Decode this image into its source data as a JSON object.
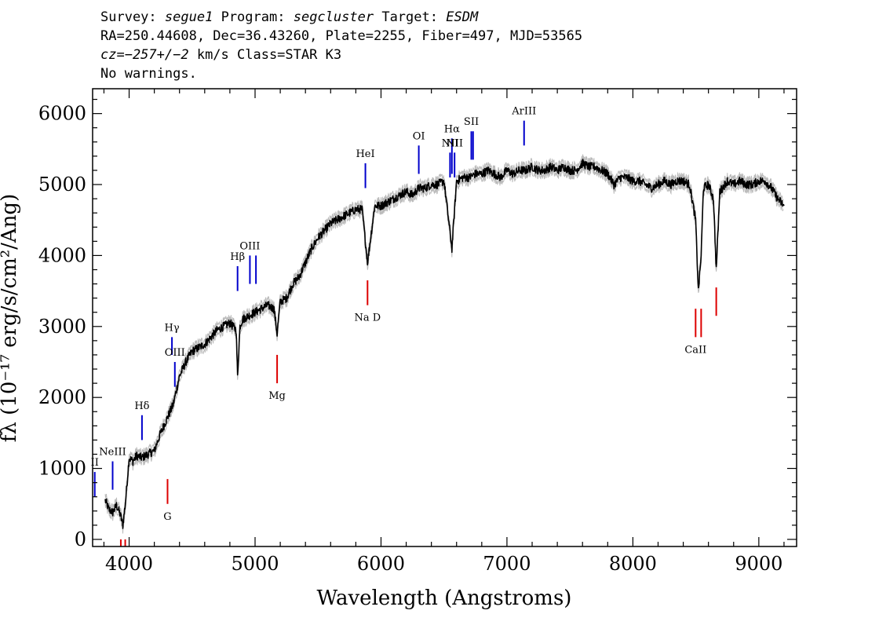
{
  "header": {
    "survey_label": "Survey:",
    "survey": "segue1",
    "program_label": "Program:",
    "program": "segcluster",
    "target_label": "Target:",
    "target": "ESDM",
    "line2": "RA=250.44608, Dec=36.43260, Plate=2255, Fiber=497, MJD=53565",
    "cz": "cz=−257+/−2",
    "cz_rest": " km/s Class=STAR K3",
    "warnings": "No warnings."
  },
  "chart_data": {
    "type": "line",
    "xlabel": "Wavelength (Angstroms)",
    "ylabel": "fλ (10⁻¹⁷ erg/s/cm²/Ang)",
    "xlim": [
      3710,
      9300
    ],
    "ylim": [
      -100,
      6350
    ],
    "xticks": [
      4000,
      5000,
      6000,
      7000,
      8000,
      9000
    ],
    "yticks": [
      0,
      1000,
      2000,
      3000,
      4000,
      5000,
      6000
    ],
    "grid": false,
    "series": [
      {
        "color": "#000000",
        "x": [
          3810,
          3840,
          3870,
          3900,
          3930,
          3950,
          3970,
          4000,
          4030,
          4060,
          4100,
          4150,
          4200,
          4250,
          4300,
          4350,
          4400,
          4450,
          4500,
          4550,
          4600,
          4650,
          4700,
          4750,
          4800,
          4850,
          4861,
          4880,
          4900,
          4950,
          5000,
          5050,
          5100,
          5150,
          5175,
          5200,
          5250,
          5300,
          5350,
          5400,
          5450,
          5500,
          5550,
          5600,
          5650,
          5700,
          5750,
          5800,
          5850,
          5893,
          5950,
          6000,
          6050,
          6100,
          6150,
          6200,
          6250,
          6300,
          6350,
          6400,
          6450,
          6500,
          6563,
          6600,
          6650,
          6700,
          6750,
          6800,
          6850,
          6900,
          6950,
          7000,
          7050,
          7100,
          7150,
          7200,
          7250,
          7300,
          7350,
          7400,
          7450,
          7500,
          7550,
          7600,
          7650,
          7700,
          7750,
          7800,
          7850,
          7900,
          7950,
          8000,
          8050,
          8100,
          8150,
          8200,
          8250,
          8300,
          8350,
          8400,
          8450,
          8498,
          8520,
          8542,
          8560,
          8600,
          8640,
          8662,
          8690,
          8750,
          8800,
          8850,
          8900,
          8950,
          9000,
          9050,
          9100,
          9150,
          9200
        ],
        "y": [
          550,
          420,
          380,
          480,
          350,
          200,
          500,
          1150,
          1100,
          1180,
          1150,
          1200,
          1250,
          1500,
          1700,
          1900,
          2300,
          2500,
          2650,
          2700,
          2750,
          2850,
          2950,
          3000,
          3050,
          2950,
          2300,
          3000,
          3100,
          3150,
          3200,
          3250,
          3300,
          3250,
          2900,
          3350,
          3400,
          3600,
          3700,
          3900,
          4100,
          4250,
          4350,
          4450,
          4500,
          4550,
          4600,
          4650,
          4650,
          3900,
          4700,
          4700,
          4750,
          4800,
          4850,
          4900,
          4850,
          4950,
          4950,
          5000,
          5000,
          5050,
          4100,
          5050,
          5100,
          5100,
          5150,
          5150,
          5200,
          5150,
          5100,
          5200,
          5150,
          5200,
          5200,
          5250,
          5200,
          5200,
          5250,
          5200,
          5250,
          5200,
          5200,
          5300,
          5250,
          5250,
          5200,
          5150,
          5000,
          5100,
          5100,
          5050,
          5050,
          5000,
          4950,
          5000,
          5050,
          5000,
          5050,
          5050,
          5000,
          4500,
          3500,
          4000,
          4950,
          5000,
          4800,
          3800,
          4900,
          5050,
          5000,
          5050,
          5000,
          5000,
          5050,
          5050,
          4950,
          4800,
          4700
        ]
      }
    ],
    "emission_lines": [
      {
        "label": "II",
        "x": 3727,
        "y0": 600,
        "y1": 950
      },
      {
        "label": "NeIII",
        "x": 3869,
        "y0": 700,
        "y1": 1100
      },
      {
        "label": "Hδ",
        "x": 4102,
        "y0": 1400,
        "y1": 1750
      },
      {
        "label": "Hγ",
        "x": 4340,
        "y0": 2600,
        "y1": 2850
      },
      {
        "label": "OIII",
        "x": 4363,
        "y0": 2150,
        "y1": 2500
      },
      {
        "label": "Hβ",
        "x": 4861,
        "y0": 3500,
        "y1": 3850
      },
      {
        "label": "OIII",
        "x": 4959,
        "y0": 3600,
        "y1": 4000
      },
      {
        "label": "",
        "x": 5007,
        "y0": 3600,
        "y1": 4000
      },
      {
        "label": "HeI",
        "x": 5876,
        "y0": 4950,
        "y1": 5300
      },
      {
        "label": "OI",
        "x": 6300,
        "y0": 5150,
        "y1": 5550
      },
      {
        "label": "NII",
        "x": 6548,
        "y0": 5100,
        "y1": 5450
      },
      {
        "label": "Hα",
        "x": 6563,
        "y0": 5150,
        "y1": 5650
      },
      {
        "label": "NII",
        "x": 6584,
        "y0": 5100,
        "y1": 5450
      },
      {
        "label": "SII",
        "x": 6717,
        "y0": 5350,
        "y1": 5750
      },
      {
        "label": "",
        "x": 6731,
        "y0": 5350,
        "y1": 5750
      },
      {
        "label": "ArIII",
        "x": 7136,
        "y0": 5550,
        "y1": 5900
      }
    ],
    "absorption_lines": [
      {
        "label": "",
        "x": 3934,
        "y0": -100,
        "y1": 0
      },
      {
        "label": "",
        "x": 3969,
        "y0": -100,
        "y1": 0
      },
      {
        "label": "G",
        "x": 4305,
        "y0": 500,
        "y1": 850
      },
      {
        "label": "Mg",
        "x": 5175,
        "y0": 2200,
        "y1": 2600
      },
      {
        "label": "Na D",
        "x": 5893,
        "y0": 3300,
        "y1": 3650
      },
      {
        "label": "CaII",
        "x": 8498,
        "y0": 2850,
        "y1": 3250
      },
      {
        "label": "",
        "x": 8542,
        "y0": 2850,
        "y1": 3250
      },
      {
        "label": "",
        "x": 8662,
        "y0": 3150,
        "y1": 3550
      }
    ]
  },
  "colors": {
    "spectrum": "#000000",
    "error_band": "#bbbbbb",
    "emission": "#0000cc",
    "absorption": "#dd0000",
    "axes": "#000000",
    "background": "#ffffff"
  }
}
